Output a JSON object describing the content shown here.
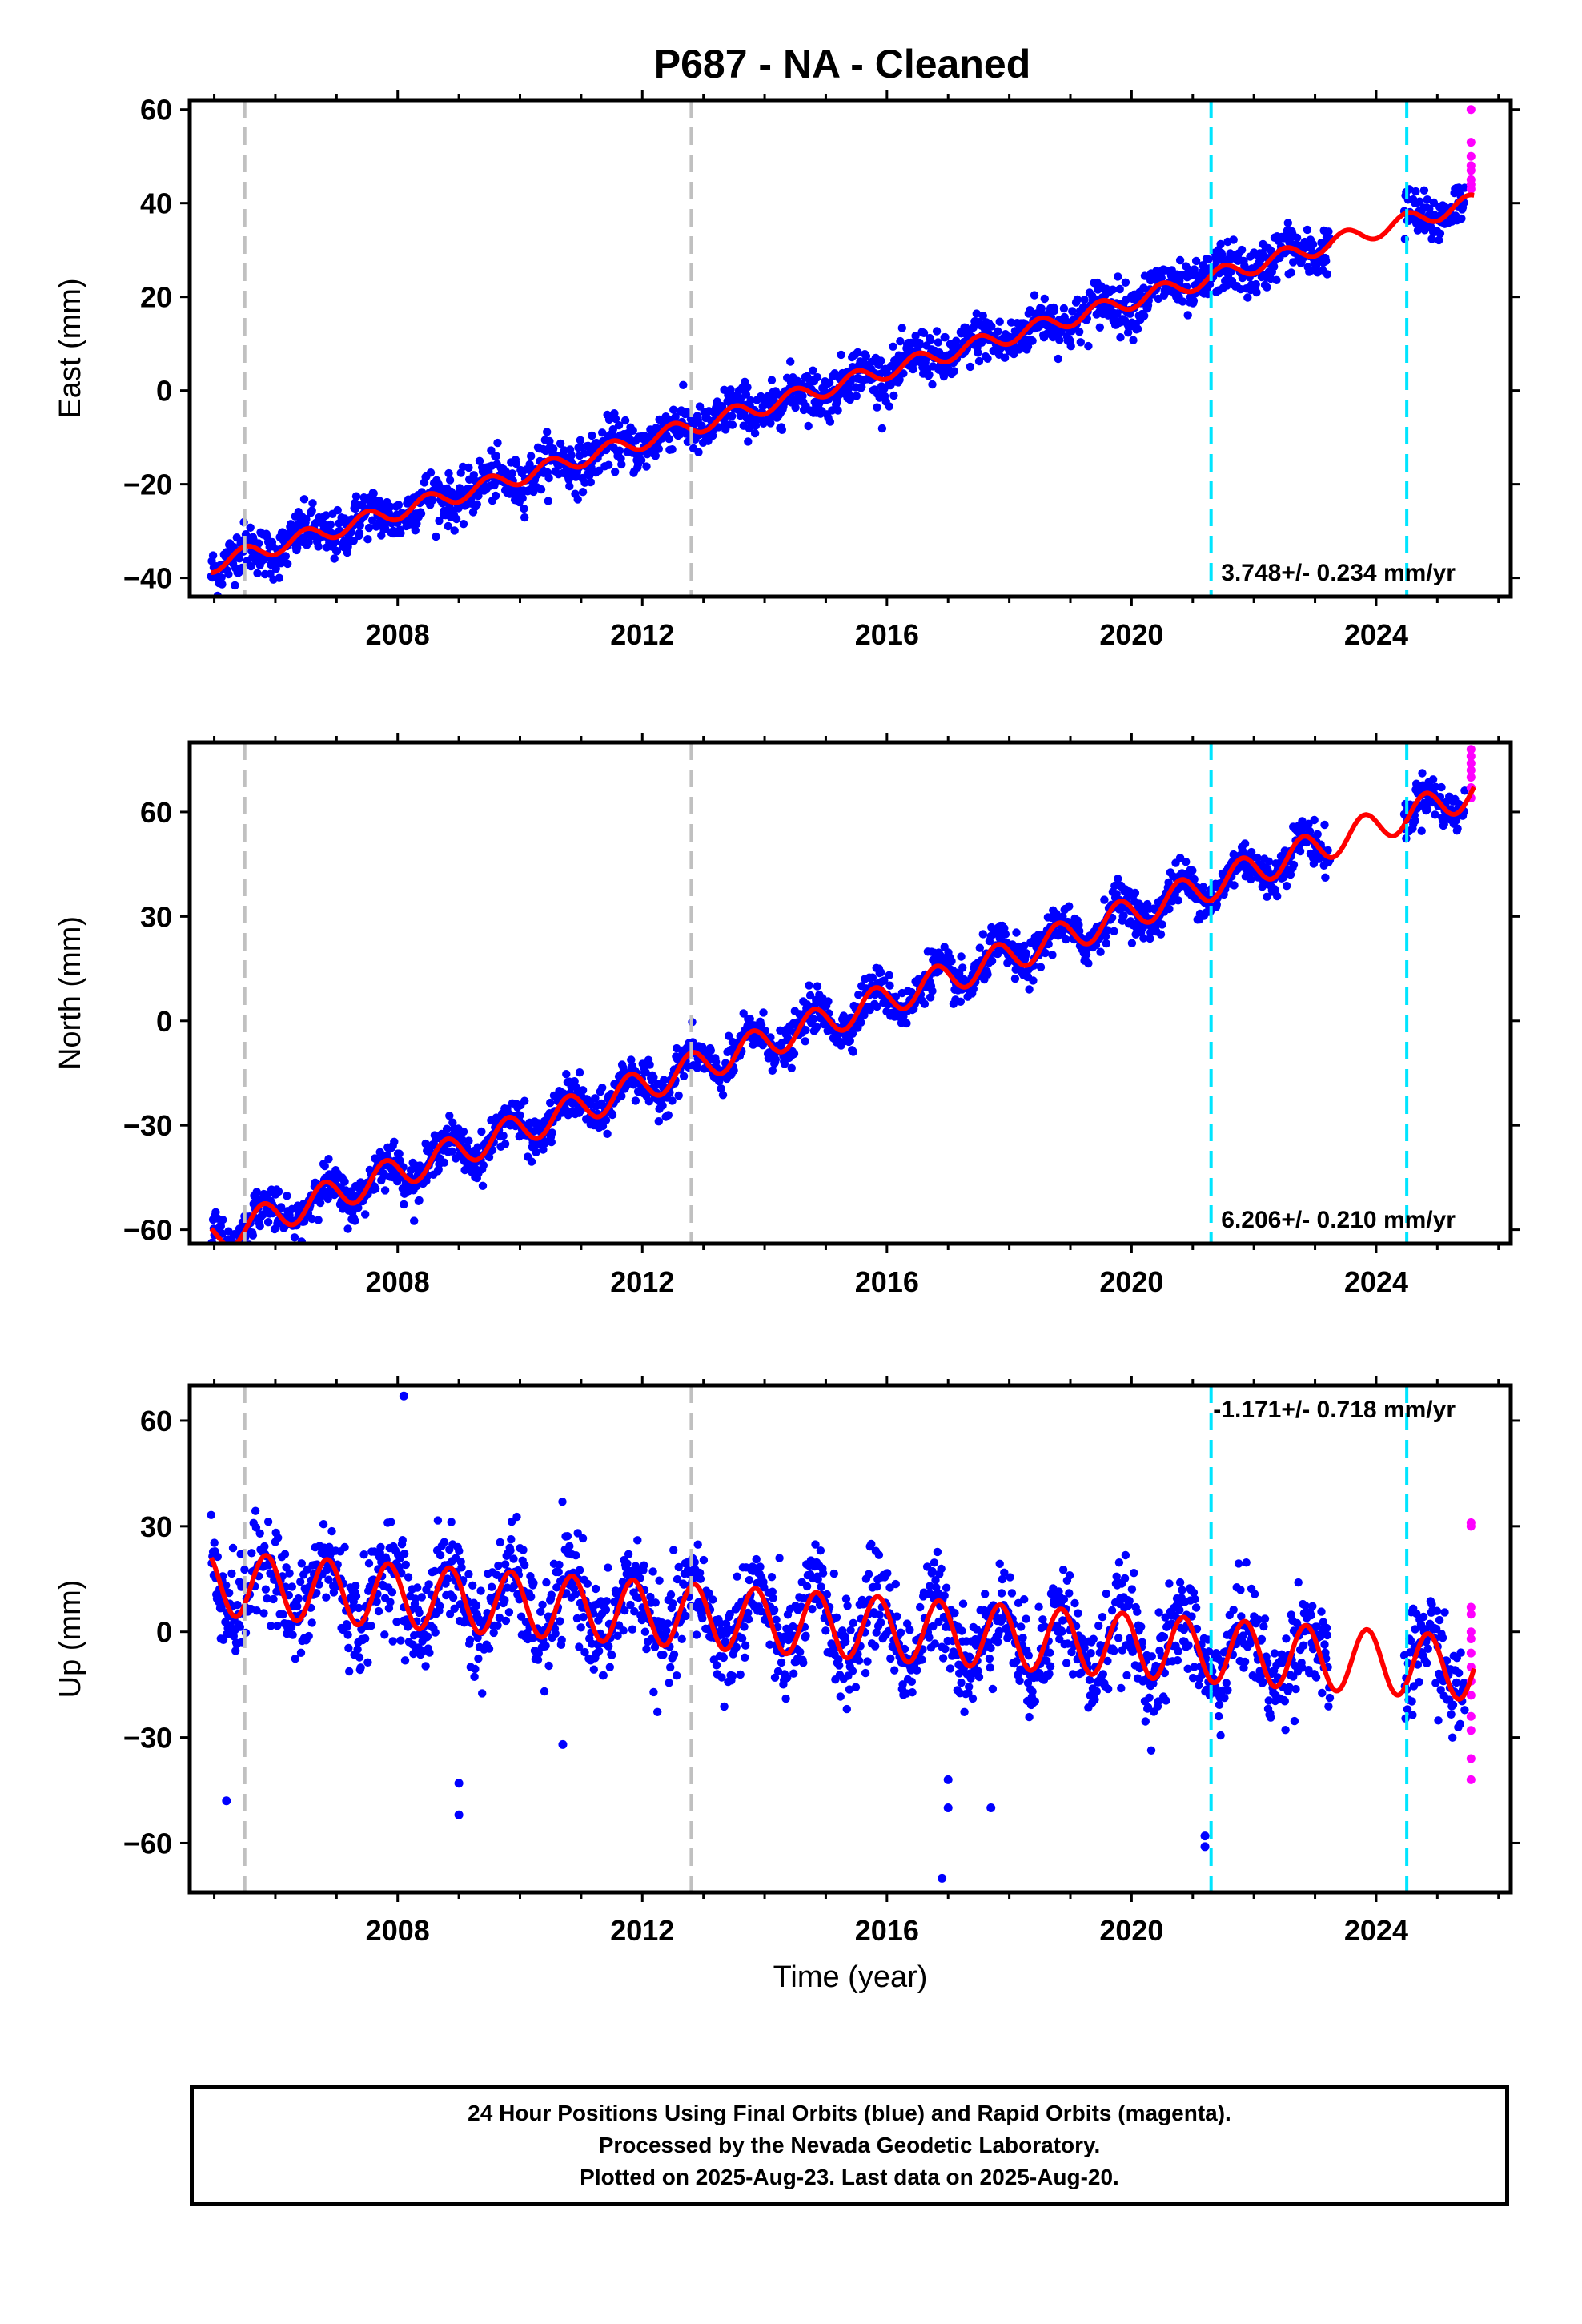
{
  "title": "P687  - NA - Cleaned",
  "footer": {
    "line1": "24 Hour Positions Using Final Orbits (blue) and Rapid Orbits (magenta).",
    "line2": "Processed by the Nevada Geodetic Laboratory.",
    "line3": "Plotted on 2025-Aug-23. Last data on 2025-Aug-20."
  },
  "colors": {
    "final_orbits": "#0000ff",
    "rapid_orbits": "#ff00ff",
    "model_fit": "#ff0000",
    "event_gray": "#c0c0c0",
    "event_cyan": "#00e5ff"
  },
  "chart_data": [
    {
      "type": "scatter",
      "panel": "east",
      "ylabel": "East (mm)",
      "xlabel": "",
      "xlim": [
        2004.6,
        2026.2
      ],
      "ylim": [
        -44,
        62
      ],
      "xticks": [
        2008,
        2012,
        2016,
        2020,
        2024
      ],
      "yticks": [
        -40,
        -20,
        0,
        20,
        40,
        60
      ],
      "tick_labels_y": [
        "−40",
        "−20",
        "0",
        "20",
        "40",
        "60"
      ],
      "rate_text": "3.748+/- 0.234 mm/yr",
      "rate": 3.748,
      "event_lines_gray": [
        2005.5,
        2012.8
      ],
      "event_lines_cyan": [
        2021.3,
        2024.5
      ],
      "model": {
        "ref_year": 2015,
        "offset": 0.5,
        "rate": 3.748,
        "amplitude": 1.8,
        "phase": 2015.25
      },
      "scatter_noise": 2.6,
      "data_gap": [
        2023.25,
        2024.45
      ],
      "rapid_orbit_values": [
        60,
        53,
        50,
        48,
        47,
        45,
        44,
        43
      ]
    },
    {
      "type": "scatter",
      "panel": "north",
      "ylabel": "North (mm)",
      "xlabel": "",
      "xlim": [
        2004.6,
        2026.2
      ],
      "ylim": [
        -64,
        80
      ],
      "xticks": [
        2008,
        2012,
        2016,
        2020,
        2024
      ],
      "yticks": [
        -60,
        -30,
        0,
        30,
        60
      ],
      "tick_labels_y": [
        "−60",
        "−30",
        "0",
        "30",
        "60"
      ],
      "rate_text": "6.206+/- 0.210 mm/yr",
      "rate": 6.206,
      "event_lines_gray": [
        2005.5,
        2012.8
      ],
      "event_lines_cyan": [
        2021.3,
        2024.5
      ],
      "model": {
        "ref_year": 2015,
        "offset": 0.0,
        "rate": 6.206,
        "amplitude": 4.5,
        "phase": 2015.55
      },
      "scatter_noise": 3.0,
      "data_gap": [
        2023.25,
        2024.45
      ],
      "rapid_orbit_values": [
        78,
        76,
        74,
        72,
        70,
        67,
        64
      ]
    },
    {
      "type": "scatter",
      "panel": "up",
      "ylabel": "Up (mm)",
      "xlabel": "Time (year)",
      "xlim": [
        2004.6,
        2026.2
      ],
      "ylim": [
        -74,
        70
      ],
      "xticks": [
        2008,
        2012,
        2016,
        2020,
        2024
      ],
      "yticks": [
        -60,
        -30,
        0,
        30,
        60
      ],
      "tick_labels_y": [
        "−60",
        "−30",
        "0",
        "30",
        "60"
      ],
      "rate_text": "-1.171+/- 0.718 mm/yr",
      "rate": -1.171,
      "event_lines_gray": [
        2005.5,
        2012.8
      ],
      "event_lines_cyan": [
        2021.3,
        2024.5
      ],
      "model": {
        "ref_year": 2015,
        "offset": 2.0,
        "rate": -1.171,
        "amplitude": 9.0,
        "phase": 2015.6
      },
      "scatter_noise": 7.0,
      "data_gap": [
        2023.25,
        2024.45
      ],
      "rapid_orbit_values": [
        31,
        30,
        7,
        5,
        0,
        -2,
        -6,
        -10,
        -14,
        -18,
        -24,
        -28,
        -36,
        -42
      ],
      "outliers": [
        {
          "x": 2008.1,
          "y": 67
        },
        {
          "x": 2005.2,
          "y": -48
        },
        {
          "x": 2009.0,
          "y": -43
        },
        {
          "x": 2009.0,
          "y": -52
        },
        {
          "x": 2010.7,
          "y": -32
        },
        {
          "x": 2016.9,
          "y": -70
        },
        {
          "x": 2017.0,
          "y": -50
        },
        {
          "x": 2017.7,
          "y": -50
        },
        {
          "x": 2021.2,
          "y": -58
        },
        {
          "x": 2021.2,
          "y": -61
        },
        {
          "x": 2017.0,
          "y": -42
        }
      ]
    }
  ]
}
